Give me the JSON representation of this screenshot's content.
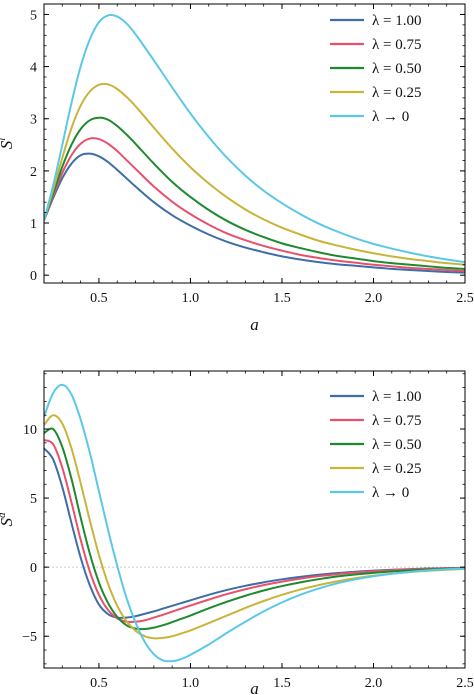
{
  "chart_data": [
    {
      "type": "line",
      "xlabel": "a",
      "ylabel": "S",
      "ylabel_sup": "l",
      "xlim": [
        0.2,
        2.5
      ],
      "ylim": [
        -0.15,
        5.2
      ],
      "xticks": [
        0.5,
        1.0,
        1.5,
        2.0,
        2.5
      ],
      "xtick_labels": [
        "0.5",
        "1.0",
        "1.5",
        "2.0",
        "2.5"
      ],
      "yticks": [
        0,
        1,
        2,
        3,
        4,
        5
      ],
      "ytick_labels": [
        "0",
        "1",
        "2",
        "3",
        "4",
        "5"
      ],
      "grid": false,
      "zero_line": false,
      "legend_position": "top-right",
      "x": [
        0.2,
        0.25,
        0.3,
        0.35,
        0.4,
        0.45,
        0.5,
        0.55,
        0.6,
        0.65,
        0.7,
        0.8,
        0.9,
        1.0,
        1.1,
        1.2,
        1.3,
        1.4,
        1.5,
        1.6,
        1.7,
        1.8,
        1.9,
        2.0,
        2.1,
        2.2,
        2.3,
        2.4,
        2.5
      ],
      "series": [
        {
          "name": "λ = 1.00",
          "color": "#3d6ea8",
          "values": [
            1.05,
            1.48,
            1.86,
            2.14,
            2.3,
            2.33,
            2.28,
            2.17,
            2.02,
            1.86,
            1.7,
            1.4,
            1.15,
            0.95,
            0.78,
            0.64,
            0.53,
            0.44,
            0.36,
            0.3,
            0.25,
            0.21,
            0.18,
            0.15,
            0.12,
            0.1,
            0.08,
            0.06,
            0.05
          ]
        },
        {
          "name": "λ = 0.75",
          "color": "#e8516c",
          "values": [
            1.05,
            1.52,
            1.96,
            2.3,
            2.52,
            2.62,
            2.61,
            2.52,
            2.38,
            2.21,
            2.04,
            1.7,
            1.41,
            1.17,
            0.97,
            0.8,
            0.67,
            0.56,
            0.47,
            0.39,
            0.33,
            0.28,
            0.24,
            0.2,
            0.17,
            0.14,
            0.12,
            0.1,
            0.08
          ]
        },
        {
          "name": "λ = 0.50",
          "color": "#1e8a2e",
          "values": [
            1.05,
            1.57,
            2.08,
            2.5,
            2.8,
            2.97,
            3.02,
            2.98,
            2.86,
            2.7,
            2.52,
            2.14,
            1.79,
            1.5,
            1.25,
            1.04,
            0.87,
            0.73,
            0.61,
            0.52,
            0.44,
            0.37,
            0.32,
            0.27,
            0.23,
            0.2,
            0.17,
            0.14,
            0.12
          ]
        },
        {
          "name": "λ = 0.25",
          "color": "#c8b43a",
          "values": [
            1.05,
            1.64,
            2.25,
            2.82,
            3.25,
            3.52,
            3.65,
            3.66,
            3.57,
            3.42,
            3.24,
            2.83,
            2.43,
            2.07,
            1.76,
            1.49,
            1.26,
            1.07,
            0.91,
            0.78,
            0.66,
            0.57,
            0.49,
            0.42,
            0.36,
            0.31,
            0.27,
            0.23,
            0.2
          ]
        },
        {
          "name": "λ → 0",
          "color": "#5bc8e8",
          "values": [
            1.05,
            1.72,
            2.5,
            3.3,
            4.0,
            4.52,
            4.85,
            4.98,
            4.96,
            4.83,
            4.62,
            4.12,
            3.6,
            3.1,
            2.65,
            2.25,
            1.91,
            1.62,
            1.38,
            1.17,
            0.99,
            0.84,
            0.71,
            0.6,
            0.51,
            0.43,
            0.36,
            0.3,
            0.25
          ]
        }
      ]
    },
    {
      "type": "line",
      "xlabel": "a",
      "ylabel": "S",
      "ylabel_sup": "d",
      "xlim": [
        0.2,
        2.5
      ],
      "ylim": [
        -7.3,
        14.2
      ],
      "xticks": [
        0.5,
        1.0,
        1.5,
        2.0,
        2.5
      ],
      "xtick_labels": [
        "0.5",
        "1.0",
        "1.5",
        "2.0",
        "2.5"
      ],
      "yticks": [
        -5,
        0,
        5,
        10
      ],
      "ytick_labels": [
        "−5",
        "0",
        "5",
        "10"
      ],
      "grid": false,
      "zero_line": true,
      "legend_position": "top-right",
      "x": [
        0.2,
        0.25,
        0.3,
        0.35,
        0.4,
        0.45,
        0.5,
        0.55,
        0.6,
        0.65,
        0.7,
        0.75,
        0.8,
        0.85,
        0.9,
        0.95,
        1.0,
        1.1,
        1.2,
        1.3,
        1.4,
        1.5,
        1.6,
        1.7,
        1.8,
        1.9,
        2.0,
        2.1,
        2.2,
        2.3,
        2.4,
        2.5
      ],
      "series": [
        {
          "name": "λ = 1.00",
          "color": "#3d6ea8",
          "values": [
            8.6,
            7.8,
            5.8,
            3.2,
            0.7,
            -1.3,
            -2.7,
            -3.4,
            -3.65,
            -3.65,
            -3.55,
            -3.38,
            -3.2,
            -3.0,
            -2.8,
            -2.6,
            -2.4,
            -2.0,
            -1.65,
            -1.35,
            -1.1,
            -0.88,
            -0.7,
            -0.55,
            -0.43,
            -0.33,
            -0.25,
            -0.19,
            -0.14,
            -0.1,
            -0.07,
            -0.05
          ]
        },
        {
          "name": "λ = 0.75",
          "color": "#e8516c",
          "values": [
            9.2,
            8.9,
            7.2,
            4.7,
            2.0,
            -0.3,
            -2.0,
            -3.1,
            -3.7,
            -3.95,
            -3.95,
            -3.85,
            -3.65,
            -3.45,
            -3.22,
            -3.0,
            -2.78,
            -2.35,
            -1.95,
            -1.6,
            -1.3,
            -1.05,
            -0.83,
            -0.65,
            -0.51,
            -0.39,
            -0.3,
            -0.22,
            -0.16,
            -0.12,
            -0.08,
            -0.06
          ]
        },
        {
          "name": "λ = 0.50",
          "color": "#1e8a2e",
          "values": [
            9.7,
            10.0,
            8.7,
            6.4,
            3.6,
            1.0,
            -1.1,
            -2.6,
            -3.6,
            -4.2,
            -4.45,
            -4.48,
            -4.38,
            -4.2,
            -3.98,
            -3.74,
            -3.5,
            -2.98,
            -2.5,
            -2.07,
            -1.69,
            -1.37,
            -1.1,
            -0.87,
            -0.68,
            -0.53,
            -0.41,
            -0.31,
            -0.23,
            -0.17,
            -0.12,
            -0.08
          ]
        },
        {
          "name": "λ = 0.25",
          "color": "#c8b43a",
          "values": [
            10.3,
            11.0,
            10.4,
            8.6,
            6.1,
            3.4,
            0.9,
            -1.2,
            -2.8,
            -3.9,
            -4.6,
            -5.0,
            -5.15,
            -5.12,
            -5.0,
            -4.8,
            -4.58,
            -4.05,
            -3.5,
            -2.95,
            -2.45,
            -2.0,
            -1.62,
            -1.3,
            -1.03,
            -0.8,
            -0.62,
            -0.47,
            -0.35,
            -0.26,
            -0.19,
            -0.13
          ]
        },
        {
          "name": "λ → 0",
          "color": "#5bc8e8",
          "values": [
            10.9,
            12.6,
            13.2,
            12.5,
            10.7,
            8.3,
            5.5,
            2.7,
            0.1,
            -2.2,
            -4.0,
            -5.4,
            -6.3,
            -6.75,
            -6.8,
            -6.65,
            -6.35,
            -5.6,
            -4.75,
            -3.95,
            -3.2,
            -2.55,
            -2.0,
            -1.55,
            -1.18,
            -0.89,
            -0.66,
            -0.48,
            -0.34,
            -0.23,
            -0.15,
            -0.1
          ]
        }
      ]
    }
  ]
}
